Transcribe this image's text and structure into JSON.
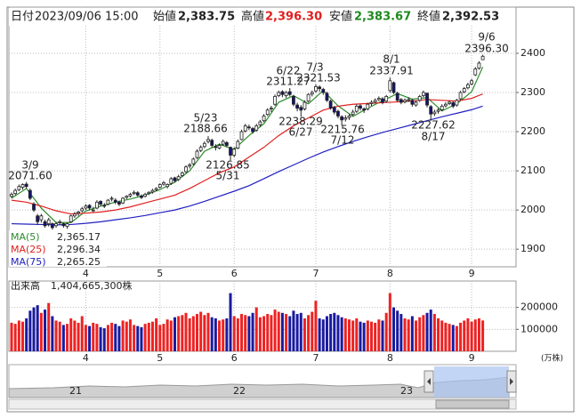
{
  "chart_data": {
    "type": "candlestick",
    "header": [
      {
        "label": "日付",
        "value": "2023/09/06 15:00"
      },
      {
        "label": "始値",
        "value": "2,383.75"
      },
      {
        "label": "高値",
        "value": "2,396.30"
      },
      {
        "label": "安値",
        "value": "2,383.67"
      },
      {
        "label": "終値",
        "value": "2,392.53"
      }
    ],
    "categories": [
      null,
      null,
      null,
      null,
      null,
      null,
      null,
      null,
      null,
      null,
      null,
      null,
      null,
      null,
      null,
      null,
      null,
      null,
      null,
      null,
      "4",
      null,
      null,
      null,
      null,
      null,
      null,
      null,
      null,
      null,
      null,
      null,
      null,
      null,
      null,
      null,
      null,
      null,
      null,
      null,
      "5",
      null,
      null,
      null,
      null,
      null,
      null,
      null,
      null,
      null,
      null,
      null,
      null,
      null,
      null,
      null,
      null,
      null,
      null,
      null,
      "6",
      null,
      null,
      null,
      null,
      null,
      null,
      null,
      null,
      null,
      null,
      null,
      null,
      null,
      null,
      null,
      null,
      null,
      null,
      null,
      null,
      null,
      "7",
      null,
      null,
      null,
      null,
      null,
      null,
      null,
      null,
      null,
      null,
      null,
      null,
      null,
      null,
      null,
      null,
      null,
      null,
      null,
      "8",
      null,
      null,
      null,
      null,
      null,
      null,
      null,
      null,
      null,
      null,
      null,
      null,
      null,
      null,
      null,
      null,
      null,
      null,
      null,
      null,
      null,
      "9",
      null,
      null,
      null
    ],
    "candles": [
      [
        2035,
        2045,
        2030,
        2040
      ],
      [
        2042,
        2055,
        2038,
        2050
      ],
      [
        2052,
        2065,
        2048,
        2060
      ],
      [
        2058,
        2068,
        2052,
        2065
      ],
      [
        2066,
        2071.6,
        2055,
        2060
      ],
      [
        2050,
        2055,
        2025,
        2030
      ],
      [
        2015,
        2020,
        1995,
        2000
      ],
      [
        1985,
        1990,
        1962,
        1970
      ],
      [
        1975,
        1990,
        1968,
        1985
      ],
      [
        1970,
        1975,
        1955,
        1960
      ],
      [
        1965,
        1980,
        1958,
        1975
      ],
      [
        1965,
        1968,
        1950,
        1955
      ],
      [
        1960,
        1970,
        1955,
        1965
      ],
      [
        1968,
        1975,
        1962,
        1970
      ],
      [
        1965,
        1968,
        1955,
        1960
      ],
      [
        1958,
        1968,
        1952,
        1965
      ],
      [
        1970,
        1988,
        1968,
        1985
      ],
      [
        1985,
        1995,
        1980,
        1990
      ],
      [
        1992,
        1998,
        1985,
        1995
      ],
      [
        1998,
        2008,
        1994,
        2003
      ],
      [
        2005,
        2015,
        2000,
        2010
      ],
      [
        2012,
        2015,
        2000,
        2005
      ],
      [
        2000,
        2008,
        1995,
        2000
      ],
      [
        2005,
        2025,
        2002,
        2020
      ],
      [
        2022,
        2025,
        2010,
        2015
      ],
      [
        2012,
        2018,
        2005,
        2010
      ],
      [
        2015,
        2028,
        2012,
        2025
      ],
      [
        2028,
        2035,
        2022,
        2030
      ],
      [
        2025,
        2030,
        2015,
        2020
      ],
      [
        2020,
        2024,
        2010,
        2015
      ],
      [
        2018,
        2033,
        2015,
        2030
      ],
      [
        2032,
        2038,
        2028,
        2035
      ],
      [
        2036,
        2044,
        2032,
        2040
      ],
      [
        2042,
        2050,
        2038,
        2045
      ],
      [
        2044,
        2048,
        2034,
        2038
      ],
      [
        2036,
        2040,
        2028,
        2032
      ],
      [
        2035,
        2044,
        2032,
        2040
      ],
      [
        2042,
        2048,
        2038,
        2045
      ],
      [
        2046,
        2054,
        2042,
        2050
      ],
      [
        2052,
        2058,
        2048,
        2055
      ],
      [
        2058,
        2068,
        2055,
        2065
      ],
      [
        2066,
        2074,
        2062,
        2070
      ],
      [
        2060,
        2068,
        2055,
        2065
      ],
      [
        2068,
        2084,
        2064,
        2080
      ],
      [
        2082,
        2085,
        2070,
        2075
      ],
      [
        2078,
        2090,
        2074,
        2085
      ],
      [
        2088,
        2098,
        2084,
        2095
      ],
      [
        2098,
        2114,
        2094,
        2110
      ],
      [
        2112,
        2120,
        2106,
        2115
      ],
      [
        2118,
        2134,
        2114,
        2130
      ],
      [
        2134,
        2155,
        2130,
        2150
      ],
      [
        2152,
        2165,
        2148,
        2160
      ],
      [
        2162,
        2175,
        2158,
        2170
      ],
      [
        2175,
        2188.66,
        2170,
        2180
      ],
      [
        2178,
        2182,
        2160,
        2165
      ],
      [
        2162,
        2168,
        2152,
        2160
      ],
      [
        2158,
        2170,
        2155,
        2165
      ],
      [
        2168,
        2180,
        2164,
        2175
      ],
      [
        2172,
        2176,
        2160,
        2165
      ],
      [
        2160,
        2162,
        2126.85,
        2140
      ],
      [
        2140,
        2160,
        2135,
        2155
      ],
      [
        2158,
        2180,
        2155,
        2175
      ],
      [
        2180,
        2205,
        2178,
        2200
      ],
      [
        2202,
        2220,
        2198,
        2215
      ],
      [
        2212,
        2218,
        2204,
        2210
      ],
      [
        2208,
        2212,
        2195,
        2200
      ],
      [
        2204,
        2220,
        2200,
        2215
      ],
      [
        2218,
        2230,
        2212,
        2225
      ],
      [
        2228,
        2245,
        2224,
        2240
      ],
      [
        2244,
        2260,
        2240,
        2255
      ],
      [
        2258,
        2266,
        2250,
        2260
      ],
      [
        2270,
        2295,
        2266,
        2290
      ],
      [
        2292,
        2305,
        2288,
        2300
      ],
      [
        2302,
        2306,
        2288,
        2295
      ],
      [
        2292,
        2304,
        2286,
        2300
      ],
      [
        2302,
        2311.27,
        2290,
        2295
      ],
      [
        2290,
        2294,
        2265,
        2270
      ],
      [
        2268,
        2274,
        2252,
        2260
      ],
      [
        2262,
        2268,
        2238.29,
        2255
      ],
      [
        2258,
        2280,
        2254,
        2275
      ],
      [
        2278,
        2298,
        2274,
        2295
      ],
      [
        2296,
        2305,
        2290,
        2300
      ],
      [
        2304,
        2321.53,
        2300,
        2315
      ],
      [
        2314,
        2318,
        2302,
        2310
      ],
      [
        2308,
        2312,
        2294,
        2300
      ],
      [
        2298,
        2302,
        2276,
        2280
      ],
      [
        2278,
        2282,
        2256,
        2260
      ],
      [
        2262,
        2266,
        2244,
        2250
      ],
      [
        2252,
        2256,
        2234,
        2240
      ],
      [
        2238,
        2242,
        2215.76,
        2230
      ],
      [
        2232,
        2242,
        2226,
        2235
      ],
      [
        2236,
        2245,
        2230,
        2240
      ],
      [
        2244,
        2256,
        2240,
        2250
      ],
      [
        2252,
        2270,
        2248,
        2265
      ],
      [
        2266,
        2270,
        2254,
        2260
      ],
      [
        2258,
        2262,
        2248,
        2255
      ],
      [
        2258,
        2274,
        2254,
        2270
      ],
      [
        2272,
        2280,
        2266,
        2275
      ],
      [
        2276,
        2285,
        2272,
        2280
      ],
      [
        2282,
        2290,
        2278,
        2285
      ],
      [
        2284,
        2288,
        2270,
        2275
      ],
      [
        2278,
        2294,
        2274,
        2290
      ],
      [
        2305,
        2337.91,
        2300,
        2330
      ],
      [
        2325,
        2328,
        2296,
        2300
      ],
      [
        2298,
        2302,
        2276,
        2280
      ],
      [
        2282,
        2286,
        2270,
        2275
      ],
      [
        2276,
        2285,
        2272,
        2280
      ],
      [
        2280,
        2288,
        2276,
        2282
      ],
      [
        2280,
        2284,
        2264,
        2270
      ],
      [
        2268,
        2280,
        2264,
        2275
      ],
      [
        2280,
        2294,
        2276,
        2290
      ],
      [
        2292,
        2305,
        2288,
        2300
      ],
      [
        2298,
        2300,
        2262,
        2268
      ],
      [
        2264,
        2268,
        2227.62,
        2245
      ],
      [
        2246,
        2256,
        2240,
        2250
      ],
      [
        2252,
        2260,
        2246,
        2255
      ],
      [
        2256,
        2270,
        2252,
        2265
      ],
      [
        2266,
        2275,
        2262,
        2270
      ],
      [
        2272,
        2280,
        2268,
        2275
      ],
      [
        2274,
        2278,
        2260,
        2265
      ],
      [
        2268,
        2284,
        2264,
        2280
      ],
      [
        2284,
        2304,
        2280,
        2300
      ],
      [
        2302,
        2314,
        2298,
        2310
      ],
      [
        2312,
        2325,
        2308,
        2320
      ],
      [
        2322,
        2335,
        2318,
        2330
      ],
      [
        2345,
        2365,
        2342,
        2360
      ],
      [
        2362,
        2380,
        2358,
        2375
      ],
      [
        2383.75,
        2396.3,
        2383.67,
        2392.53
      ]
    ],
    "up_color": "#ffffff",
    "down_color": "#14146e",
    "ylim": [
      1855,
      2518
    ],
    "yticks": [
      1900,
      2000,
      2100,
      2200,
      2300,
      2400
    ],
    "grid": true,
    "series": [
      {
        "name": "MA(5)",
        "color": "#2e8b2e",
        "value_label": "2,365.17",
        "x": [
          0,
          4,
          8,
          12,
          16,
          20,
          24,
          28,
          32,
          36,
          40,
          44,
          48,
          52,
          56,
          60,
          64,
          68,
          72,
          76,
          80,
          84,
          88,
          92,
          96,
          100,
          104,
          108,
          112,
          116,
          120,
          124,
          127
        ],
        "values": [
          2030,
          2055,
          2005,
          1968,
          1968,
          1997,
          2010,
          2020,
          2028,
          2038,
          2052,
          2071,
          2100,
          2150,
          2168,
          2155,
          2190,
          2220,
          2275,
          2292,
          2271,
          2305,
          2266,
          2239,
          2260,
          2279,
          2297,
          2283,
          2287,
          2253,
          2271,
          2302,
          2365.17
        ]
      },
      {
        "name": "MA(25)",
        "color": "#e02020",
        "value_label": "2,296.34",
        "x": [
          0,
          4,
          8,
          12,
          16,
          20,
          24,
          28,
          32,
          36,
          40,
          44,
          48,
          52,
          56,
          60,
          64,
          68,
          72,
          76,
          80,
          84,
          88,
          92,
          96,
          100,
          104,
          108,
          112,
          116,
          120,
          124,
          127
        ],
        "values": [
          2025,
          2020,
          2010,
          1998,
          1990,
          1992,
          1995,
          2000,
          2008,
          2018,
          2028,
          2038,
          2055,
          2075,
          2095,
          2110,
          2135,
          2160,
          2190,
          2215,
          2235,
          2255,
          2265,
          2270,
          2272,
          2274,
          2276,
          2278,
          2282,
          2280,
          2278,
          2285,
          2296.34
        ]
      },
      {
        "name": "MA(75)",
        "color": "#2020c0",
        "value_label": "2,265.25",
        "x": [
          0,
          4,
          8,
          12,
          16,
          20,
          24,
          28,
          32,
          36,
          40,
          44,
          48,
          52,
          56,
          60,
          64,
          68,
          72,
          76,
          80,
          84,
          88,
          92,
          96,
          100,
          104,
          108,
          112,
          116,
          120,
          124,
          127
        ],
        "values": [
          1965,
          1964,
          1963,
          1962,
          1963,
          1966,
          1970,
          1975,
          1980,
          1986,
          1993,
          2000,
          2010,
          2022,
          2035,
          2048,
          2062,
          2080,
          2098,
          2115,
          2132,
          2148,
          2162,
          2175,
          2187,
          2198,
          2208,
          2218,
          2228,
          2238,
          2247,
          2256,
          2265.25
        ]
      }
    ],
    "annotations": [
      {
        "date": "3/9",
        "price": "2071.60"
      },
      {
        "date": "5/23",
        "price": "2188.66"
      },
      {
        "date": "5/31",
        "price": "2126.85"
      },
      {
        "date": "6/22",
        "price": "2311.27"
      },
      {
        "date": "7/3",
        "price": "2321.53"
      },
      {
        "date": "6/27",
        "price": "2238.29"
      },
      {
        "date": "7/12",
        "price": "2215.76"
      },
      {
        "date": "8/1",
        "price": "2337.91"
      },
      {
        "date": "8/17",
        "price": "2227.62"
      },
      {
        "date": "9/6",
        "price": "2396.30"
      }
    ],
    "volume": {
      "title": "出来高",
      "value_label": "1,404,665,300株",
      "unit": "(万株)",
      "up_color": "#ee2222",
      "down_color": "#1a1aa0",
      "values": [
        130000,
        125000,
        140000,
        135000,
        150000,
        185000,
        200000,
        210000,
        175000,
        190000,
        220000,
        160000,
        140000,
        135000,
        120000,
        125000,
        150000,
        140000,
        130000,
        160000,
        120000,
        115000,
        130000,
        125000,
        110000,
        105000,
        120000,
        130000,
        125000,
        115000,
        140000,
        135000,
        145000,
        120000,
        115000,
        110000,
        125000,
        130000,
        135000,
        150000,
        120000,
        125000,
        145000,
        140000,
        155000,
        160000,
        165000,
        175000,
        150000,
        160000,
        170000,
        180000,
        165000,
        175000,
        155000,
        150000,
        140000,
        145000,
        150000,
        265000,
        160000,
        150000,
        170000,
        165000,
        160000,
        175000,
        200000,
        155000,
        160000,
        170000,
        165000,
        190000,
        180000,
        175000,
        170000,
        160000,
        185000,
        170000,
        175000,
        150000,
        165000,
        180000,
        230000,
        150000,
        145000,
        160000,
        170000,
        175000,
        165000,
        155000,
        150000,
        145000,
        140000,
        150000,
        135000,
        130000,
        140000,
        135000,
        130000,
        145000,
        140000,
        175000,
        265000,
        200000,
        185000,
        170000,
        150000,
        145000,
        160000,
        140000,
        155000,
        165000,
        175000,
        190000,
        170000,
        150000,
        140000,
        130000,
        125000,
        120000,
        115000,
        130000,
        140000,
        150000,
        135000,
        145000,
        150000,
        140467
      ],
      "ylim": [
        0,
        320000
      ],
      "yticks": [
        100000,
        200000
      ]
    },
    "navigator": {
      "labels": [
        "21",
        "22",
        "23"
      ]
    }
  }
}
